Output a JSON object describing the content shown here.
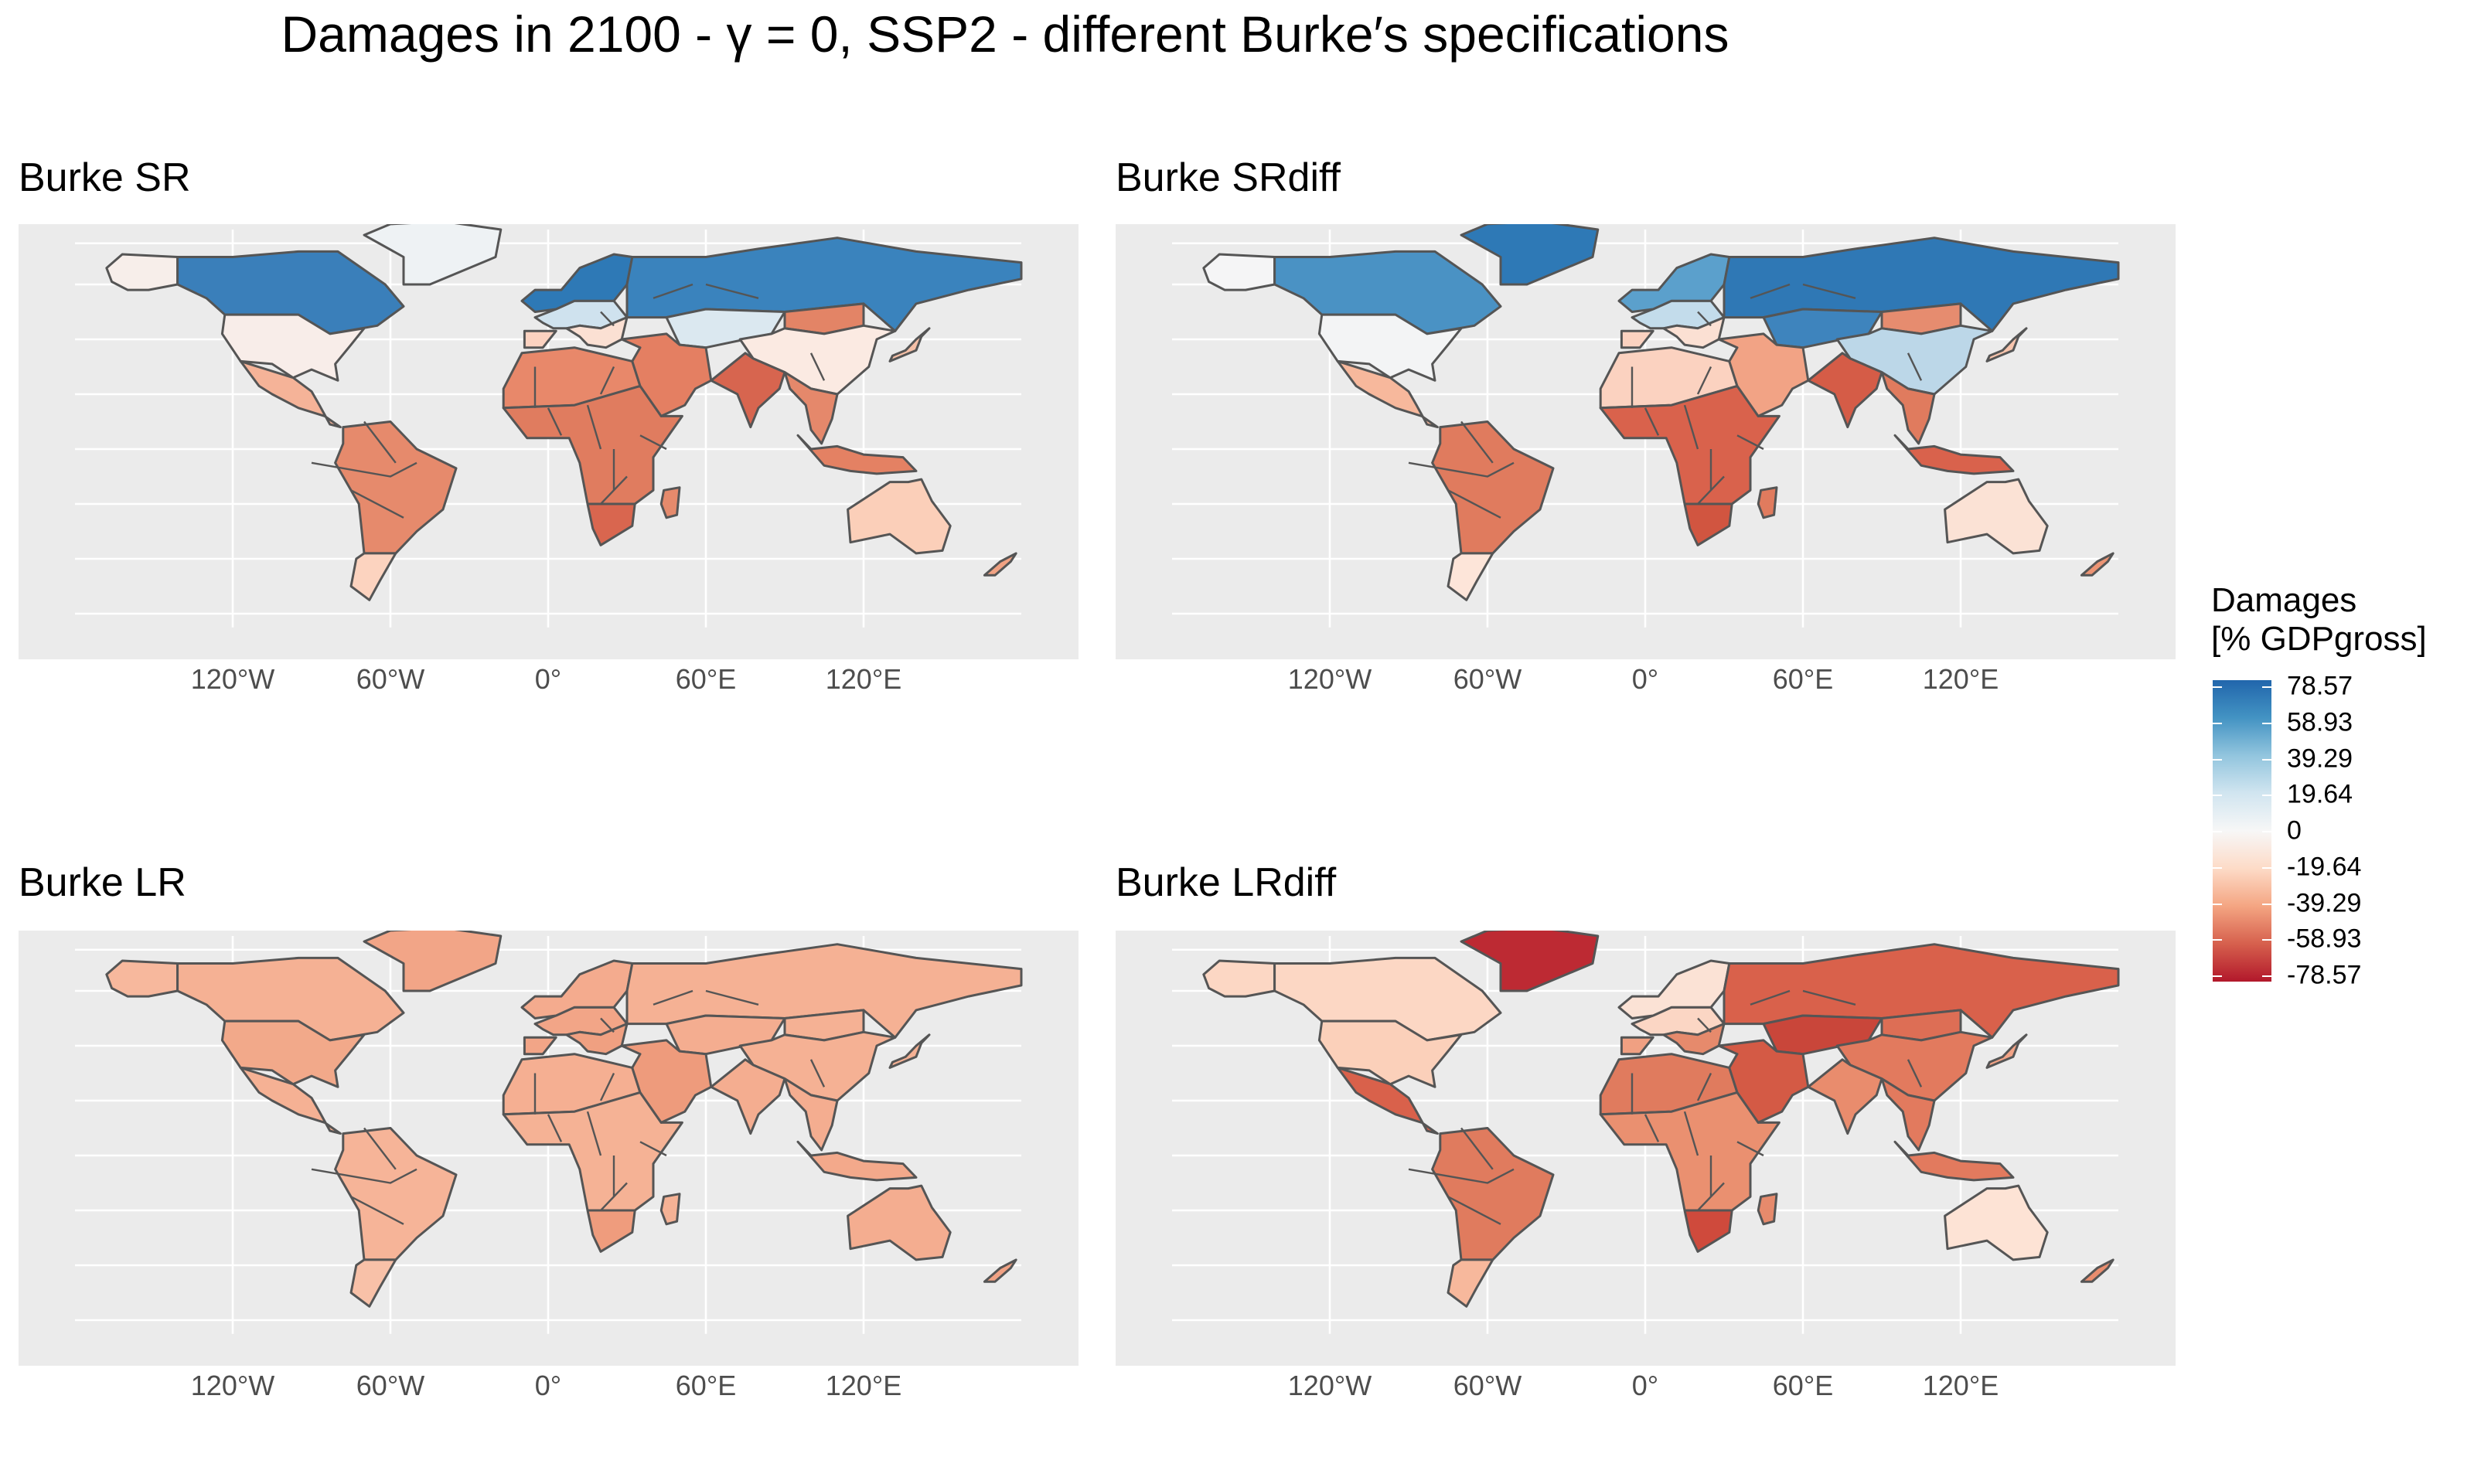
{
  "title": "Damages in 2100 - γ = 0, SSP2 - different Burke′s specifications",
  "map_data": {
    "lon_labels": [
      "120°W",
      "60°W",
      "0°",
      "60°E",
      "120°E"
    ],
    "legend": {
      "title_line1": "Damages",
      "title_line2": "[% GDPgross]",
      "labels": [
        "78.57",
        "58.93",
        "39.29",
        "19.64",
        "0",
        "-19.64",
        "-39.29",
        "-58.93",
        "-78.57"
      ],
      "colors": [
        "#2166ac",
        "#4393c3",
        "#92c5de",
        "#d1e5f0",
        "#f7f7f7",
        "#fddbc7",
        "#f4a582",
        "#d6604d",
        "#b2182b"
      ]
    },
    "panels": [
      {
        "title": "Burke SR",
        "regions": {
          "canada": "#3a7fba",
          "usa": "#f8ede9",
          "alaska": "#f7eeea",
          "mexico_central_america": "#f5b398",
          "greenland": "#eef2f4",
          "south_america": "#e68a6c",
          "patagonia": "#fcd3bf",
          "africa_north": "#e8886a",
          "africa_sub": "#e07c5f",
          "southern_africa": "#d9664f",
          "madagascar": "#e58a6c",
          "europe_north": "#2e79b6",
          "europe_central": "#cfe2ee",
          "europe_south": "#fbe0d3",
          "iberia": "#fbd2c0",
          "russia": "#3a83bd",
          "central_asia": "#dbe8f0",
          "mongolia": "#e38466",
          "china": "#fbeae2",
          "middle_east": "#e47f62",
          "india": "#d7654f",
          "southeast_asia": "#e5886b",
          "indonesia": "#e48163",
          "australia": "#fbcfb9",
          "new_zealand": "#f1a283",
          "japan": "#f6c0a7"
        }
      },
      {
        "title": "Burke SRdiff",
        "regions": {
          "canada": "#4a92c4",
          "usa": "#f3f4f5",
          "alaska": "#f5f5f6",
          "mexico_central_america": "#f7b89c",
          "greenland": "#2e79b6",
          "south_america": "#e07b5e",
          "patagonia": "#fde5d9",
          "africa_north": "#fbd2c0",
          "africa_sub": "#d9624c",
          "southern_africa": "#d15540",
          "madagascar": "#e07b5e",
          "europe_north": "#5ba0cc",
          "europe_central": "#c3dceb",
          "europe_south": "#fbe0d3",
          "iberia": "#fbd2c0",
          "russia": "#2f78b5",
          "central_asia": "#3e84bd",
          "mongolia": "#e68c6f",
          "china": "#bcd7e8",
          "middle_east": "#f2a385",
          "india": "#d55c47",
          "southeast_asia": "#e07b5e",
          "indonesia": "#d9624c",
          "australia": "#fbe2d5",
          "new_zealand": "#ec9474",
          "japan": "#f8c5ad"
        }
      },
      {
        "title": "Burke LR",
        "regions": {
          "canada": "#f5b194",
          "usa": "#f2a98a",
          "alaska": "#f7b89d",
          "mexico_central_america": "#f5b194",
          "greenland": "#f2a587",
          "south_america": "#f6b498",
          "patagonia": "#f8c1a8",
          "africa_north": "#f5af92",
          "africa_sub": "#f5b295",
          "southern_africa": "#ef9c7d",
          "madagascar": "#f5b295",
          "europe_north": "#f4ab8e",
          "europe_central": "#f2a587",
          "europe_south": "#f0a081",
          "iberia": "#f2a587",
          "russia": "#f5b194",
          "central_asia": "#f4ad90",
          "mongolia": "#f5b194",
          "china": "#f5b194",
          "middle_east": "#ee9b7c",
          "india": "#f4ad90",
          "southeast_asia": "#f4ad90",
          "indonesia": "#f3a98b",
          "australia": "#f4ad90",
          "new_zealand": "#f1a284",
          "japan": "#f5b194"
        }
      },
      {
        "title": "Burke LRdiff",
        "regions": {
          "canada": "#fcd7c4",
          "usa": "#fbd0ba",
          "alaska": "#fcd7c4",
          "mexico_central_america": "#d9614b",
          "greenland": "#bd2a33",
          "south_america": "#e07b5e",
          "patagonia": "#f7b89c",
          "africa_north": "#e07b5e",
          "africa_sub": "#ea9070",
          "southern_africa": "#cf4a3c",
          "madagascar": "#e68a6c",
          "europe_north": "#fbe2d5",
          "europe_central": "#fbd6c4",
          "europe_south": "#e68a6c",
          "iberia": "#f0a082",
          "russia": "#d9614b",
          "central_asia": "#c9463a",
          "mongolia": "#dd6e55",
          "china": "#e27a5e",
          "middle_east": "#d45a45",
          "india": "#e98c6d",
          "southeast_asia": "#e27a5e",
          "indonesia": "#e27a5e",
          "australia": "#fde3d5",
          "new_zealand": "#ea8d6e",
          "japan": "#f2a386"
        }
      }
    ]
  }
}
